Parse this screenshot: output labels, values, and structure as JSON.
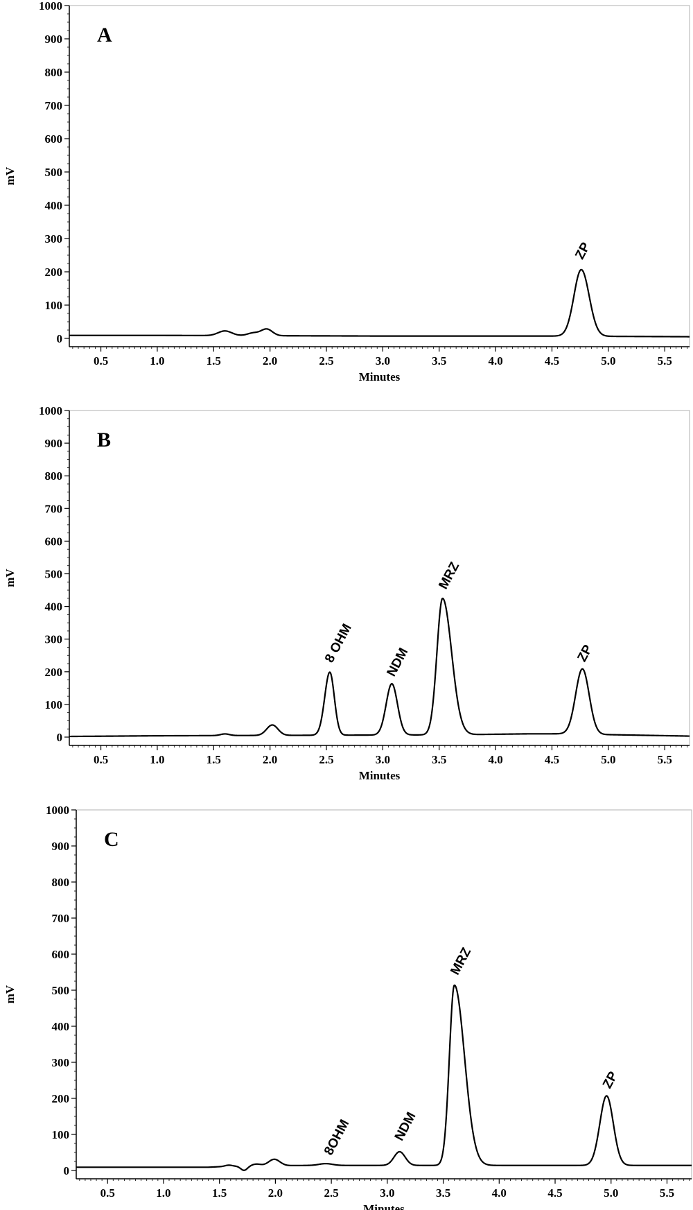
{
  "chart_data": [
    {
      "type": "line",
      "panel_label": "A",
      "xlabel": "Minutes",
      "ylabel": "mV",
      "xlim": [
        0.22,
        5.72
      ],
      "ylim": [
        0,
        1000
      ],
      "x_ticks": [
        "0.5",
        "1.0",
        "1.5",
        "2.0",
        "2.5",
        "3.0",
        "3.5",
        "4.0",
        "4.5",
        "5.0",
        "5.5"
      ],
      "y_ticks": [
        "0",
        "100",
        "200",
        "300",
        "400",
        "500",
        "600",
        "700",
        "800",
        "900",
        "1000"
      ],
      "series": [
        {
          "color": "#000000",
          "baseline": [
            [
              0.22,
              9
            ],
            [
              1.0,
              9
            ],
            [
              3.0,
              7
            ],
            [
              4.5,
              7
            ],
            [
              5.72,
              5
            ]
          ],
          "peaks": [
            {
              "x": 1.6,
              "height": 14,
              "width": 0.06
            },
            {
              "x": 1.85,
              "height": 8,
              "width": 0.05
            },
            {
              "x": 1.97,
              "height": 20,
              "width": 0.05
            },
            {
              "x": 4.76,
              "height": 200,
              "width": 0.065,
              "tail": 0.07
            }
          ]
        }
      ],
      "annotations": [
        {
          "text": "ZP",
          "x": 4.77,
          "y": 235
        }
      ]
    },
    {
      "type": "line",
      "panel_label": "B",
      "xlabel": "Minutes",
      "ylabel": "mV",
      "xlim": [
        0.22,
        5.72
      ],
      "ylim": [
        0,
        1000
      ],
      "x_ticks": [
        "0.5",
        "1.0",
        "1.5",
        "2.0",
        "2.5",
        "3.0",
        "3.5",
        "4.0",
        "4.5",
        "5.0",
        "5.5"
      ],
      "y_ticks": [
        "0",
        "100",
        "200",
        "300",
        "400",
        "500",
        "600",
        "700",
        "800",
        "900",
        "1000"
      ],
      "series": [
        {
          "color": "#000000",
          "baseline": [
            [
              0.22,
              2
            ],
            [
              1.0,
              4
            ],
            [
              3.6,
              7
            ],
            [
              4.3,
              10
            ],
            [
              4.6,
              10
            ],
            [
              5.72,
              3
            ]
          ],
          "peaks": [
            {
              "x": 1.6,
              "height": 5,
              "width": 0.04
            },
            {
              "x": 2.02,
              "height": 32,
              "width": 0.05
            },
            {
              "x": 2.53,
              "height": 193,
              "width": 0.045,
              "tail": 0.04
            },
            {
              "x": 3.08,
              "height": 157,
              "width": 0.05,
              "tail": 0.05
            },
            {
              "x": 3.53,
              "height": 418,
              "width": 0.05,
              "tail": 0.08
            },
            {
              "x": 4.77,
              "height": 200,
              "width": 0.06,
              "tail": 0.06
            }
          ]
        }
      ],
      "annotations": [
        {
          "text": "8 OHM",
          "x": 2.55,
          "y": 225
        },
        {
          "text": "NDM",
          "x": 3.1,
          "y": 183
        },
        {
          "text": "MRZ",
          "x": 3.56,
          "y": 450
        },
        {
          "text": "ZP",
          "x": 4.79,
          "y": 228
        }
      ]
    },
    {
      "type": "line",
      "panel_label": "C",
      "xlabel": "Minutes",
      "ylabel": "mV",
      "xlim": [
        0.22,
        5.72
      ],
      "ylim": [
        0,
        1000
      ],
      "x_ticks": [
        "0.5",
        "1.0",
        "1.5",
        "2.0",
        "2.5",
        "3.0",
        "3.5",
        "4.0",
        "4.5",
        "5.0",
        "5.5"
      ],
      "y_ticks": [
        "0",
        "100",
        "200",
        "300",
        "400",
        "500",
        "600",
        "700",
        "800",
        "900",
        "1000"
      ],
      "series": [
        {
          "color": "#000000",
          "baseline": [
            [
              0.22,
              9
            ],
            [
              1.4,
              9
            ],
            [
              1.6,
              12
            ],
            [
              2.3,
              14
            ],
            [
              2.6,
              14
            ],
            [
              3.5,
              14
            ],
            [
              4.3,
              14
            ],
            [
              5.72,
              14
            ]
          ],
          "peaks": [
            {
              "x": 1.58,
              "height": 3,
              "width": 0.03
            },
            {
              "x": 1.72,
              "height": -12,
              "width": 0.03
            },
            {
              "x": 1.83,
              "height": 5,
              "width": 0.04
            },
            {
              "x": 1.99,
              "height": 18,
              "width": 0.05
            },
            {
              "x": 2.45,
              "height": 5,
              "width": 0.06
            },
            {
              "x": 3.11,
              "height": 38,
              "width": 0.05
            },
            {
              "x": 3.6,
              "height": 500,
              "width": 0.045,
              "tail": 0.09
            },
            {
              "x": 4.96,
              "height": 193,
              "width": 0.06,
              "tail": 0.06
            }
          ]
        }
      ],
      "annotations": [
        {
          "text": "8OHM",
          "x": 2.5,
          "y": 40
        },
        {
          "text": "NDM",
          "x": 3.13,
          "y": 80
        },
        {
          "text": "MRZ",
          "x": 3.63,
          "y": 540
        },
        {
          "text": "ZP",
          "x": 4.99,
          "y": 225
        }
      ]
    }
  ]
}
